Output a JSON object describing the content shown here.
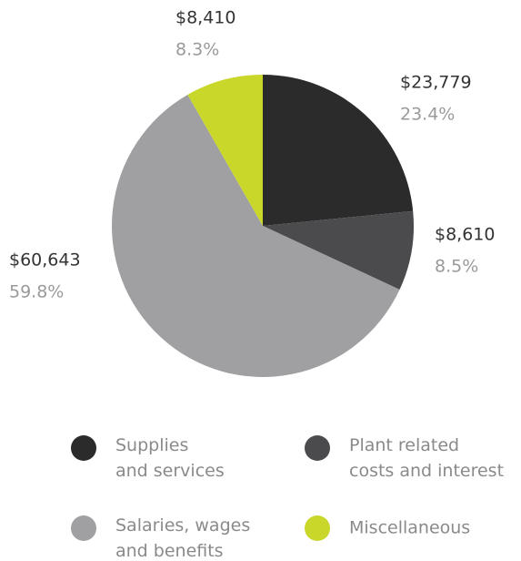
{
  "chart_data": {
    "type": "pie",
    "categories": [
      "Supplies\nand services",
      "Plant related\ncosts and interest",
      "Salaries, wages\nand benefits",
      "Miscellaneous"
    ],
    "values": [
      23779,
      8610,
      60643,
      8410
    ],
    "value_labels": [
      "$23,779",
      "$8,610",
      "$60,643",
      "$8,410"
    ],
    "percent_labels": [
      "23.4%",
      "8.5%",
      "59.8%",
      "8.3%"
    ],
    "colors": [
      "#2b2b2b",
      "#4b4b4d",
      "#a0a0a3",
      "#c9d72b"
    ]
  }
}
